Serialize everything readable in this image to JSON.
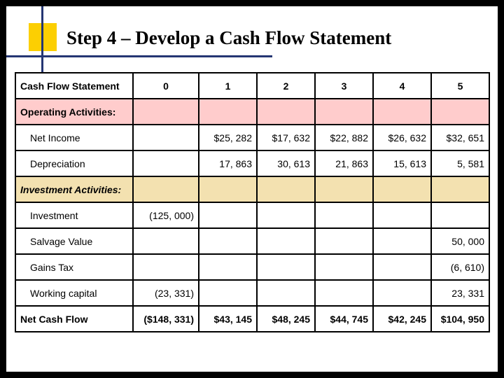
{
  "title": "Step 4 – Develop a Cash Flow Statement",
  "colors": {
    "page_bg": "#000000",
    "slide_bg": "#ffffff",
    "accent_square": "#fccf02",
    "accent_line": "#243673",
    "section_op_bg": "#ffcccc",
    "section_inv_bg": "#f3e1b0",
    "border": "#000000",
    "text": "#000000"
  },
  "typography": {
    "title_font": "Times New Roman",
    "title_size_pt": 20,
    "title_weight": "bold",
    "body_font": "Arial",
    "body_size_pt": 11
  },
  "table": {
    "header": {
      "label": "Cash Flow Statement",
      "cols": [
        "0",
        "1",
        "2",
        "3",
        "4",
        "5"
      ]
    },
    "rows": [
      {
        "type": "section_op",
        "label": "Operating Activities:",
        "cells": [
          "",
          "",
          "",
          "",
          "",
          ""
        ]
      },
      {
        "type": "data",
        "label": "Net Income",
        "indent": true,
        "cells": [
          "",
          "$25, 282",
          "$17, 632",
          "$22, 882",
          "$26, 632",
          "$32, 651"
        ]
      },
      {
        "type": "data",
        "label": "Depreciation",
        "indent": true,
        "cells": [
          "",
          "17, 863",
          "30, 613",
          "21, 863",
          "15, 613",
          "5, 581"
        ]
      },
      {
        "type": "section_inv",
        "label": "Investment Activities:",
        "cells": [
          "",
          "",
          "",
          "",
          "",
          ""
        ]
      },
      {
        "type": "data",
        "label": "Investment",
        "indent": true,
        "cells": [
          "(125, 000)",
          "",
          "",
          "",
          "",
          ""
        ]
      },
      {
        "type": "data",
        "label": "Salvage Value",
        "indent": true,
        "cells": [
          "",
          "",
          "",
          "",
          "",
          "50, 000"
        ]
      },
      {
        "type": "data",
        "label": "Gains Tax",
        "indent": true,
        "cells": [
          "",
          "",
          "",
          "",
          "",
          "(6, 610)"
        ]
      },
      {
        "type": "data",
        "label": "Working capital",
        "indent": true,
        "cells": [
          "(23, 331)",
          "",
          "",
          "",
          "",
          "23, 331"
        ]
      },
      {
        "type": "total",
        "label": "Net Cash Flow",
        "cells": [
          "($148, 331)",
          "$43, 145",
          "$48, 245",
          "$44, 745",
          "$42, 245",
          "$104, 950"
        ]
      }
    ]
  }
}
